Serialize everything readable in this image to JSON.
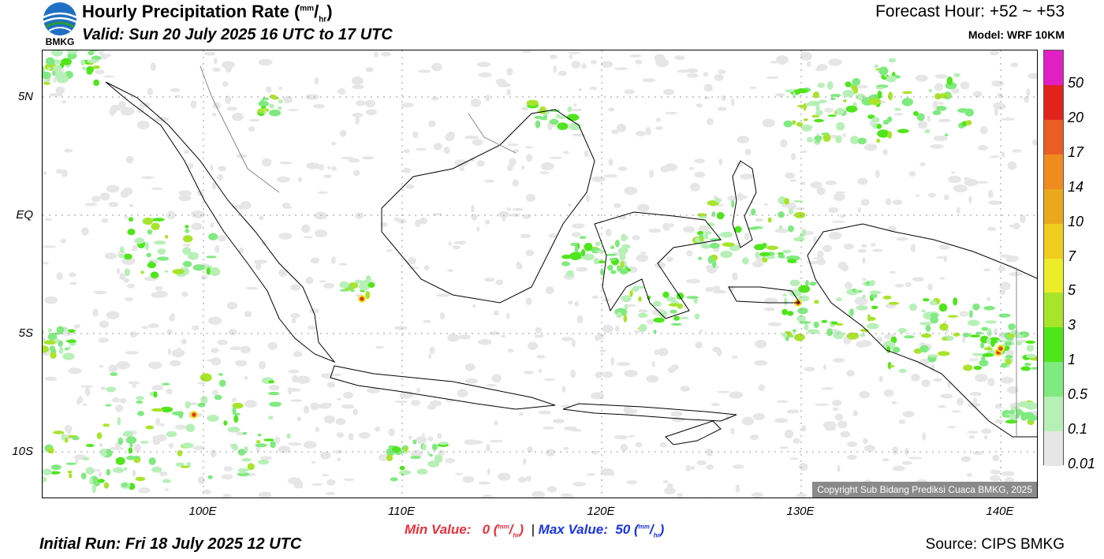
{
  "header": {
    "logo_text": "BMKG",
    "title_main": "Hourly Precipitation Rate (",
    "title_unit_num": "mm",
    "title_slash": "/",
    "title_unit_den": "hr",
    "title_close": ")",
    "valid": "Valid: Sun 20 July 2025 16 UTC to 17 UTC",
    "forecast_hour": "Forecast Hour: +52 ~ +53",
    "model": "Model: WRF 10KM"
  },
  "map": {
    "lat_labels": [
      "5N",
      "EQ",
      "5S",
      "10S"
    ],
    "lon_labels": [
      "100E",
      "110E",
      "120E",
      "130E",
      "140E"
    ],
    "copyright": "Copyright Sub Bidang Prediksi Cuaca BMKG, 2025",
    "lon_range": [
      92,
      142
    ],
    "lat_range": [
      -12,
      7
    ]
  },
  "legend": {
    "labels": [
      "50",
      "20",
      "17",
      "14",
      "10",
      "7",
      "5",
      "3",
      "1",
      "0.5",
      "0.1",
      "0.01"
    ],
    "colors": [
      "#e21fc2",
      "#e2231c",
      "#ea5e23",
      "#f08b20",
      "#eaa91d",
      "#f0cc1d",
      "#ecec28",
      "#a8e42b",
      "#4ee61a",
      "#7fea7f",
      "#b7f0b7",
      "#e6e6e6"
    ]
  },
  "minmax": {
    "min_label": "Min Value:",
    "min_value": "0",
    "unit_num": "mm",
    "unit_den": "hr",
    "separator": "|",
    "max_label": "Max Value:",
    "max_value": "50",
    "min_color": "#e8323c",
    "max_color": "#1a35e0"
  },
  "footer": {
    "initial_run": "Initial Run: Fri 18 July 2025 12 UTC",
    "source": "Source: CIPS BMKG"
  }
}
